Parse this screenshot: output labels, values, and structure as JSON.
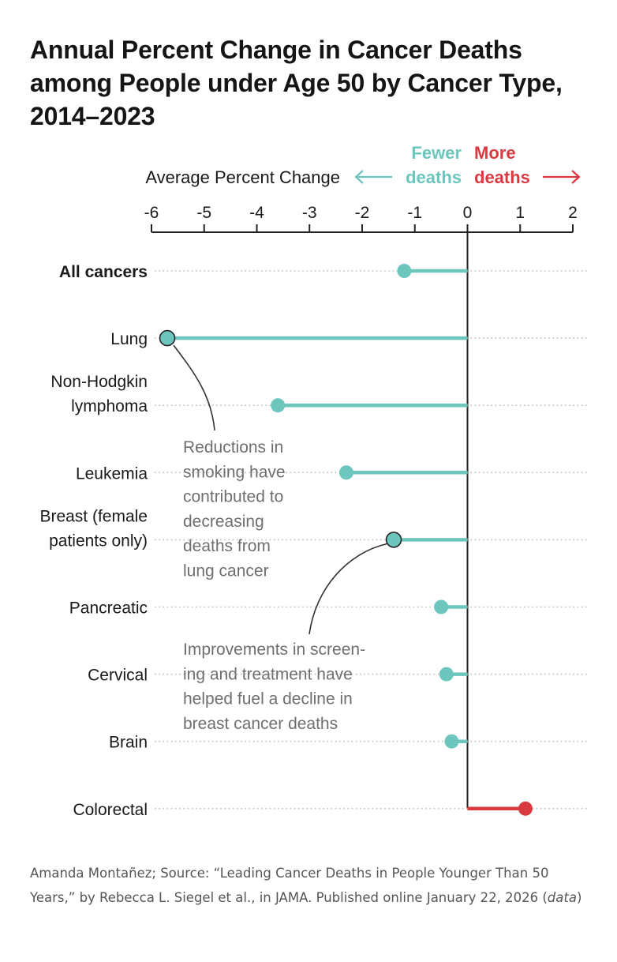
{
  "colors": {
    "fewer": "#6cc6be",
    "more": "#d93a3f",
    "axis": "#222222",
    "dots": "#bdbdbd",
    "annotation_text": "#6f6f6f",
    "credit_text": "#555555"
  },
  "chart_data": {
    "type": "lollipop",
    "title": "Annual Percent Change in Cancer Deaths among People under Age 50 by Cancer Type, 2014–2023",
    "axis_label": "Average Percent Change",
    "direction_labels": {
      "fewer": [
        "Fewer",
        "deaths"
      ],
      "more": [
        "More",
        "deaths"
      ]
    },
    "xlim": [
      -6,
      2
    ],
    "xticks": [
      -6,
      -5,
      -4,
      -3,
      -2,
      -1,
      0,
      1,
      2
    ],
    "grid": false,
    "categories": [
      {
        "label": [
          "All cancers"
        ],
        "value": -1.2,
        "bold": true,
        "outlined": false
      },
      {
        "label": [
          "Lung"
        ],
        "value": -5.7,
        "bold": false,
        "outlined": true
      },
      {
        "label": [
          "Non-Hodgkin",
          "lymphoma"
        ],
        "value": -3.6,
        "bold": false,
        "outlined": false
      },
      {
        "label": [
          "Leukemia"
        ],
        "value": -2.3,
        "bold": false,
        "outlined": false
      },
      {
        "label": [
          "Breast (female",
          "patients only)"
        ],
        "value": -1.4,
        "bold": false,
        "outlined": true
      },
      {
        "label": [
          "Pancreatic"
        ],
        "value": -0.5,
        "bold": false,
        "outlined": false
      },
      {
        "label": [
          "Cervical"
        ],
        "value": -0.4,
        "bold": false,
        "outlined": false
      },
      {
        "label": [
          "Brain"
        ],
        "value": -0.3,
        "bold": false,
        "outlined": false
      },
      {
        "label": [
          "Colorectal"
        ],
        "value": 1.1,
        "bold": false,
        "outlined": false
      }
    ],
    "annotations": [
      {
        "target": "Lung",
        "lines": [
          "Reductions in",
          "smoking have",
          "contributed to",
          "decreasing",
          "deaths from",
          "lung cancer"
        ]
      },
      {
        "target": "Breast (female patients only)",
        "lines": [
          "Improvements in screen-",
          "ing and treatment have",
          "helped fuel a decline in",
          "breast cancer deaths"
        ]
      }
    ]
  },
  "credit": {
    "text": "Amanda Montañez; Source: “Leading Cancer Deaths in People Younger Than 50 Years,” by Rebecca L. Siegel et al., in JAMA. Published online January 22, 2026 (",
    "italic": "data",
    "close": ")"
  }
}
